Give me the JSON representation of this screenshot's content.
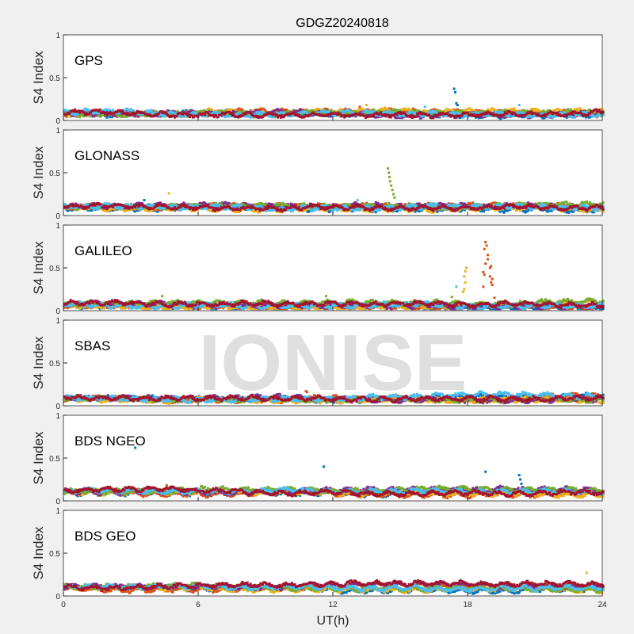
{
  "chart_data": {
    "type": "scatter",
    "title": "GDGZ20240818",
    "xlabel": "UT(h)",
    "ylabel": "S4 Index",
    "xlim": [
      0,
      24
    ],
    "ylim": [
      0,
      1
    ],
    "xticks": [
      "0",
      "6",
      "12",
      "18",
      "24"
    ],
    "yticks": [
      "0",
      "0.5",
      "1"
    ],
    "watermark": "IONISE",
    "series_colors": [
      "#0072BD",
      "#D95319",
      "#EDB120",
      "#7E2F8E",
      "#77AC30",
      "#4DBEEE",
      "#A2142F"
    ],
    "panels": [
      {
        "name": "GPS",
        "baseline": 0.08,
        "spikes": [
          [
            17.4,
            0.37,
            0
          ],
          [
            17.45,
            0.33,
            0
          ],
          [
            17.5,
            0.2,
            0
          ],
          [
            17.55,
            0.18,
            0
          ],
          [
            13.5,
            0.18,
            2
          ],
          [
            13.2,
            0.16,
            1
          ],
          [
            20.3,
            0.18,
            5
          ],
          [
            16.1,
            0.16,
            5
          ]
        ]
      },
      {
        "name": "GLONASS",
        "baseline": 0.1,
        "spikes": [
          [
            14.45,
            0.55,
            4
          ],
          [
            14.5,
            0.5,
            4
          ],
          [
            14.52,
            0.45,
            4
          ],
          [
            14.55,
            0.4,
            4
          ],
          [
            14.6,
            0.35,
            4
          ],
          [
            14.65,
            0.3,
            4
          ],
          [
            14.7,
            0.25,
            4
          ],
          [
            14.75,
            0.21,
            4
          ],
          [
            4.7,
            0.26,
            2
          ],
          [
            3.6,
            0.18,
            0
          ],
          [
            13.1,
            0.18,
            5
          ]
        ]
      },
      {
        "name": "GALILEO",
        "baseline": 0.07,
        "spikes": [
          [
            18.8,
            0.8,
            1
          ],
          [
            18.85,
            0.76,
            1
          ],
          [
            18.75,
            0.72,
            1
          ],
          [
            18.9,
            0.65,
            1
          ],
          [
            18.8,
            0.55,
            1
          ],
          [
            18.9,
            0.6,
            1
          ],
          [
            19.0,
            0.5,
            1
          ],
          [
            19.05,
            0.52,
            1
          ],
          [
            18.7,
            0.45,
            1
          ],
          [
            18.75,
            0.42,
            1
          ],
          [
            19.0,
            0.4,
            1
          ],
          [
            19.1,
            0.37,
            1
          ],
          [
            19.05,
            0.33,
            1
          ],
          [
            18.7,
            0.28,
            1
          ],
          [
            19.1,
            0.3,
            1
          ],
          [
            19.2,
            0.15,
            1
          ],
          [
            17.95,
            0.5,
            2
          ],
          [
            17.9,
            0.46,
            2
          ],
          [
            17.85,
            0.4,
            2
          ],
          [
            17.9,
            0.33,
            2
          ],
          [
            17.85,
            0.25,
            2
          ],
          [
            17.8,
            0.22,
            2
          ],
          [
            17.5,
            0.28,
            5
          ],
          [
            4.4,
            0.17,
            4
          ],
          [
            11.7,
            0.17,
            4
          ],
          [
            17.3,
            0.16,
            4
          ]
        ]
      },
      {
        "name": "SBAS",
        "baseline": 0.09,
        "spikes": [
          [
            10.8,
            0.17,
            1
          ],
          [
            10.85,
            0.16,
            1
          ]
        ]
      },
      {
        "name": "BDS NGEO",
        "baseline": 0.1,
        "spikes": [
          [
            3.2,
            0.62,
            0
          ],
          [
            11.6,
            0.4,
            0
          ],
          [
            18.8,
            0.34,
            0
          ],
          [
            20.3,
            0.3,
            0
          ],
          [
            20.35,
            0.25,
            0
          ],
          [
            20.4,
            0.2,
            0
          ],
          [
            4.6,
            0.18,
            1
          ]
        ]
      },
      {
        "name": "BDS GEO",
        "baseline": 0.1,
        "spikes": [
          [
            23.3,
            0.27,
            2
          ]
        ]
      }
    ]
  }
}
